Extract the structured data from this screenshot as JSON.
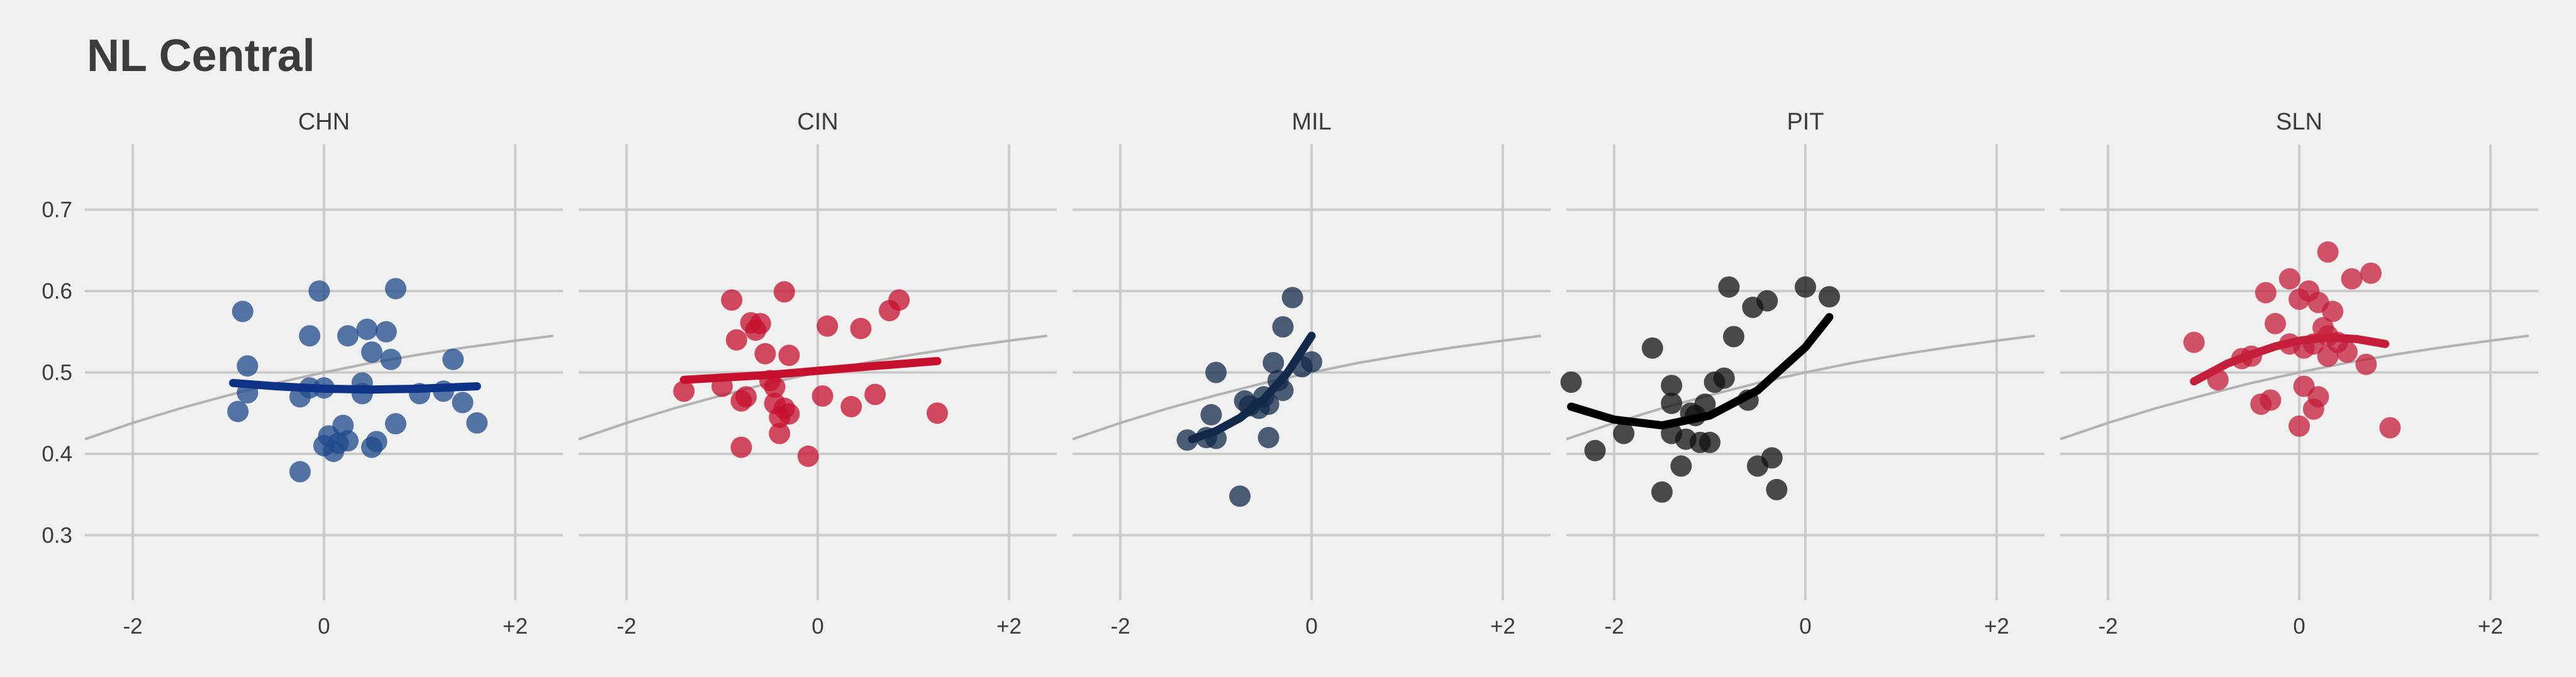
{
  "chart_data": {
    "type": "scatter",
    "title": "NL Central",
    "xlabel": "",
    "ylabel": "",
    "xlim": [
      -2.5,
      2.5
    ],
    "ylim": [
      0.22,
      0.78
    ],
    "x_ticks": [
      -2,
      0,
      2
    ],
    "x_tick_labels": [
      "-2",
      "0",
      "+2"
    ],
    "y_ticks": [
      0.3,
      0.4,
      0.5,
      0.6,
      0.7
    ],
    "y_tick_labels": [
      "0.3",
      "0.4",
      "0.5",
      "0.6",
      "0.7"
    ],
    "grid": true,
    "legend": "none",
    "reference_curve": {
      "color": "#b3b3b3",
      "x": [
        -2.5,
        -2.0,
        -1.5,
        -1.0,
        -0.5,
        0.0,
        0.5,
        1.0,
        1.5,
        2.0,
        2.4
      ],
      "y": [
        0.418,
        0.438,
        0.456,
        0.472,
        0.487,
        0.5,
        0.512,
        0.522,
        0.531,
        0.539,
        0.545
      ]
    },
    "panels": [
      {
        "label": "CHN",
        "color": "#1f4a8c",
        "fit_color": "#0e3386",
        "points": [
          [
            -0.9,
            0.452
          ],
          [
            -0.85,
            0.575
          ],
          [
            -0.8,
            0.508
          ],
          [
            -0.8,
            0.475
          ],
          [
            -0.25,
            0.378
          ],
          [
            -0.25,
            0.47
          ],
          [
            -0.15,
            0.545
          ],
          [
            -0.15,
            0.481
          ],
          [
            0.0,
            0.481
          ],
          [
            -0.05,
            0.6
          ],
          [
            0.0,
            0.41
          ],
          [
            0.05,
            0.422
          ],
          [
            0.1,
            0.403
          ],
          [
            0.15,
            0.413
          ],
          [
            0.2,
            0.435
          ],
          [
            0.25,
            0.416
          ],
          [
            0.25,
            0.545
          ],
          [
            0.4,
            0.474
          ],
          [
            0.4,
            0.487
          ],
          [
            0.45,
            0.553
          ],
          [
            0.5,
            0.525
          ],
          [
            0.5,
            0.408
          ],
          [
            0.55,
            0.415
          ],
          [
            0.65,
            0.55
          ],
          [
            0.7,
            0.516
          ],
          [
            0.75,
            0.603
          ],
          [
            0.75,
            0.437
          ],
          [
            1.0,
            0.474
          ],
          [
            1.25,
            0.477
          ],
          [
            1.35,
            0.516
          ],
          [
            1.45,
            0.463
          ],
          [
            1.6,
            0.438
          ]
        ],
        "fit": {
          "x": [
            -0.95,
            -0.5,
            0.0,
            0.5,
            1.0,
            1.6
          ],
          "y": [
            0.487,
            0.483,
            0.48,
            0.479,
            0.48,
            0.483
          ]
        }
      },
      {
        "label": "CIN",
        "color": "#c6102e",
        "fit_color": "#c6102e",
        "points": [
          [
            -1.4,
            0.477
          ],
          [
            -1.0,
            0.483
          ],
          [
            -0.9,
            0.589
          ],
          [
            -0.85,
            0.54
          ],
          [
            -0.8,
            0.465
          ],
          [
            -0.75,
            0.47
          ],
          [
            -0.7,
            0.561
          ],
          [
            -0.65,
            0.552
          ],
          [
            -0.6,
            0.56
          ],
          [
            -0.55,
            0.523
          ],
          [
            -0.5,
            0.49
          ],
          [
            -0.45,
            0.462
          ],
          [
            -0.45,
            0.482
          ],
          [
            -0.4,
            0.425
          ],
          [
            -0.4,
            0.445
          ],
          [
            -0.35,
            0.599
          ],
          [
            -0.35,
            0.456
          ],
          [
            -0.3,
            0.521
          ],
          [
            -0.3,
            0.449
          ],
          [
            -0.8,
            0.408
          ],
          [
            -0.1,
            0.397
          ],
          [
            0.05,
            0.471
          ],
          [
            0.1,
            0.557
          ],
          [
            0.35,
            0.458
          ],
          [
            0.45,
            0.554
          ],
          [
            0.6,
            0.473
          ],
          [
            0.75,
            0.576
          ],
          [
            0.85,
            0.589
          ],
          [
            1.25,
            0.45
          ]
        ],
        "fit": {
          "x": [
            -1.4,
            -0.5,
            0.0,
            0.5,
            1.25
          ],
          "y": [
            0.491,
            0.497,
            0.502,
            0.507,
            0.514
          ]
        }
      },
      {
        "label": "MIL",
        "color": "#13294b",
        "fit_color": "#13294b",
        "points": [
          [
            -1.3,
            0.417
          ],
          [
            -1.1,
            0.42
          ],
          [
            -1.05,
            0.448
          ],
          [
            -1.0,
            0.419
          ],
          [
            -1.0,
            0.5
          ],
          [
            -0.75,
            0.348
          ],
          [
            -0.7,
            0.465
          ],
          [
            -0.65,
            0.459
          ],
          [
            -0.55,
            0.456
          ],
          [
            -0.5,
            0.47
          ],
          [
            -0.45,
            0.461
          ],
          [
            -0.45,
            0.42
          ],
          [
            -0.4,
            0.512
          ],
          [
            -0.35,
            0.49
          ],
          [
            -0.3,
            0.478
          ],
          [
            -0.3,
            0.556
          ],
          [
            -0.2,
            0.592
          ],
          [
            -0.1,
            0.507
          ],
          [
            0.0,
            0.513
          ]
        ],
        "fit": {
          "x": [
            -1.25,
            -1.0,
            -0.75,
            -0.5,
            -0.25,
            0.0
          ],
          "y": [
            0.418,
            0.428,
            0.444,
            0.467,
            0.5,
            0.545
          ]
        }
      },
      {
        "label": "PIT",
        "color": "#111111",
        "fit_color": "#000000",
        "points": [
          [
            -2.45,
            0.488
          ],
          [
            -2.2,
            0.404
          ],
          [
            -1.9,
            0.425
          ],
          [
            -1.6,
            0.53
          ],
          [
            -1.5,
            0.353
          ],
          [
            -1.4,
            0.484
          ],
          [
            -1.4,
            0.462
          ],
          [
            -1.4,
            0.425
          ],
          [
            -1.3,
            0.385
          ],
          [
            -1.25,
            0.418
          ],
          [
            -1.2,
            0.45
          ],
          [
            -1.15,
            0.447
          ],
          [
            -1.1,
            0.414
          ],
          [
            -1.05,
            0.461
          ],
          [
            -1.0,
            0.414
          ],
          [
            -0.95,
            0.488
          ],
          [
            -0.85,
            0.493
          ],
          [
            -0.8,
            0.605
          ],
          [
            -0.75,
            0.544
          ],
          [
            -0.6,
            0.466
          ],
          [
            -0.55,
            0.58
          ],
          [
            -0.5,
            0.385
          ],
          [
            -0.4,
            0.588
          ],
          [
            -0.35,
            0.395
          ],
          [
            -0.3,
            0.356
          ],
          [
            0.0,
            0.605
          ],
          [
            0.25,
            0.593
          ]
        ],
        "fit": {
          "x": [
            -2.45,
            -2.0,
            -1.5,
            -1.0,
            -0.5,
            0.0,
            0.25
          ],
          "y": [
            0.458,
            0.442,
            0.435,
            0.447,
            0.478,
            0.531,
            0.568
          ]
        }
      },
      {
        "label": "SLN",
        "color": "#c41e3a",
        "fit_color": "#c41e3a",
        "points": [
          [
            -1.1,
            0.537
          ],
          [
            -0.85,
            0.491
          ],
          [
            -0.6,
            0.517
          ],
          [
            -0.5,
            0.52
          ],
          [
            -0.4,
            0.461
          ],
          [
            -0.35,
            0.598
          ],
          [
            -0.3,
            0.466
          ],
          [
            -0.25,
            0.56
          ],
          [
            -0.1,
            0.615
          ],
          [
            -0.1,
            0.535
          ],
          [
            0.0,
            0.434
          ],
          [
            0.0,
            0.59
          ],
          [
            0.05,
            0.483
          ],
          [
            0.05,
            0.53
          ],
          [
            0.1,
            0.6
          ],
          [
            0.15,
            0.535
          ],
          [
            0.15,
            0.455
          ],
          [
            0.2,
            0.586
          ],
          [
            0.2,
            0.47
          ],
          [
            0.25,
            0.555
          ],
          [
            0.3,
            0.52
          ],
          [
            0.3,
            0.545
          ],
          [
            0.3,
            0.648
          ],
          [
            0.35,
            0.575
          ],
          [
            0.4,
            0.537
          ],
          [
            0.5,
            0.525
          ],
          [
            0.55,
            0.615
          ],
          [
            0.7,
            0.51
          ],
          [
            0.75,
            0.622
          ],
          [
            0.95,
            0.432
          ]
        ],
        "fit": {
          "x": [
            -1.1,
            -0.75,
            -0.5,
            -0.25,
            0.0,
            0.3,
            0.6,
            0.9
          ],
          "y": [
            0.489,
            0.511,
            0.522,
            0.532,
            0.539,
            0.543,
            0.541,
            0.535
          ]
        }
      }
    ]
  }
}
